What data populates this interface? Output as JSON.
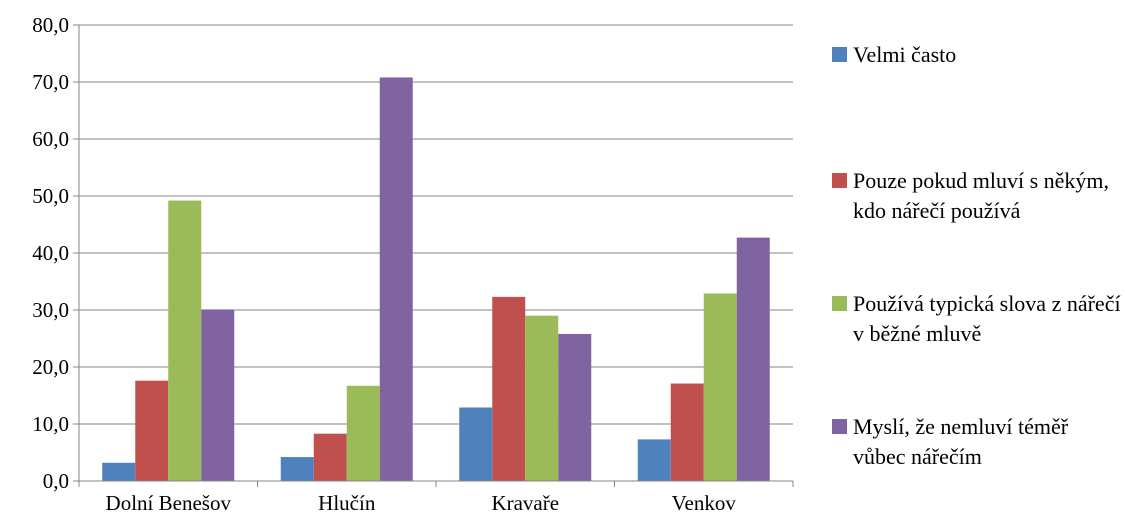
{
  "chart_data": {
    "type": "bar",
    "categories": [
      "Dolní Benešov",
      "Hlučín",
      "Kravaře",
      "Venkov"
    ],
    "series": [
      {
        "name": "Velmi často",
        "color": "#4F81BD",
        "values": [
          3.2,
          4.2,
          12.9,
          7.3
        ]
      },
      {
        "name": "Pouze pokud mluví s někým, kdo nářečí používá",
        "color": "#C0504D",
        "values": [
          17.6,
          8.3,
          32.3,
          17.1
        ]
      },
      {
        "name": "Používá typická slova z nářečí v běžné mluvě",
        "color": "#9BBB59",
        "values": [
          49.2,
          16.7,
          29.0,
          32.9
        ]
      },
      {
        "name": "Myslí, že nemluví téměř vůbec nářečím",
        "color": "#8064A2",
        "values": [
          30.1,
          70.8,
          25.8,
          42.7
        ]
      }
    ],
    "y_ticks": [
      "0,0",
      "10,0",
      "20,0",
      "30,0",
      "40,0",
      "50,0",
      "60,0",
      "70,0",
      "80,0"
    ],
    "ylim": [
      0,
      80
    ],
    "grid": true,
    "legend_position": "right"
  }
}
